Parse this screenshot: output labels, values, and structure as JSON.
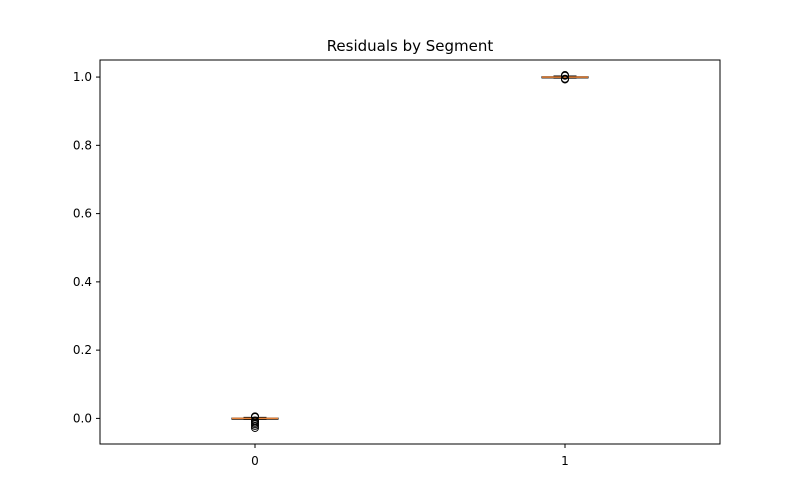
{
  "chart_data": {
    "type": "box",
    "title": "Residuals by Segment",
    "xlabel": "",
    "ylabel": "",
    "categories": [
      "0",
      "1"
    ],
    "ylim": [
      -0.075,
      1.05
    ],
    "yticks": [
      0.0,
      0.2,
      0.4,
      0.6,
      0.8,
      1.0
    ],
    "ytick_labels": [
      "0.0",
      "0.2",
      "0.4",
      "0.6",
      "0.8",
      "1.0"
    ],
    "grid": false,
    "boxes": [
      {
        "category": "0",
        "q1": -0.001,
        "median": 0.0,
        "q3": 0.001,
        "whisker_low": -0.003,
        "whisker_high": 0.003,
        "outliers": [
          -0.028,
          -0.022,
          -0.017,
          -0.013,
          -0.009,
          -0.006,
          0.004,
          0.006
        ]
      },
      {
        "category": "1",
        "q1": 0.999,
        "median": 1.0,
        "q3": 1.001,
        "whisker_low": 0.997,
        "whisker_high": 1.003,
        "outliers": [
          0.993,
          0.995,
          1.004,
          1.006
        ]
      }
    ],
    "colors": {
      "median": "#e8843a",
      "box": "#000000",
      "outlier": "#000000"
    }
  }
}
